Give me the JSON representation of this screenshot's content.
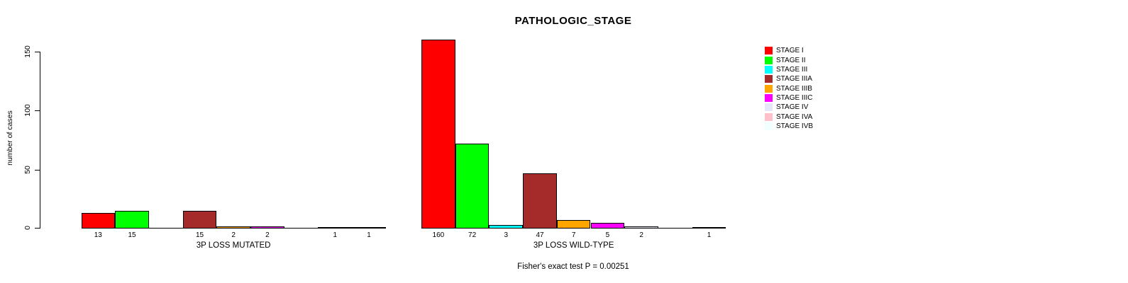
{
  "chart_data": {
    "type": "bar",
    "title": "PATHOLOGIC_STAGE",
    "ylabel": "number of cases",
    "yticks": [
      0,
      50,
      100,
      150
    ],
    "ylim": [
      0,
      160
    ],
    "grid": false,
    "legend_position": "right",
    "series": [
      {
        "name": "STAGE I",
        "color": "#FF0000"
      },
      {
        "name": "STAGE II",
        "color": "#00FF00"
      },
      {
        "name": "STAGE III",
        "color": "#00FFFF"
      },
      {
        "name": "STAGE IIIA",
        "color": "#A52A2A"
      },
      {
        "name": "STAGE IIIB",
        "color": "#FFA500"
      },
      {
        "name": "STAGE IIIC",
        "color": "#FF00FF"
      },
      {
        "name": "STAGE IV",
        "color": "#E6E6FA"
      },
      {
        "name": "STAGE IVA",
        "color": "#FFC0CB"
      },
      {
        "name": "STAGE IVB",
        "color": "#F0FFFF"
      }
    ],
    "groups": [
      {
        "label": "3P LOSS MUTATED",
        "values": [
          13,
          15,
          0,
          15,
          2,
          2,
          0,
          1,
          1
        ]
      },
      {
        "label": "3P LOSS WILD-TYPE",
        "values": [
          160,
          72,
          3,
          47,
          7,
          5,
          2,
          0,
          1
        ]
      }
    ],
    "footnote": "Fisher's exact test P = 0.00251",
    "bar_outline_color": "#000000",
    "value_labels_shown_only_when_nonzero": true
  }
}
